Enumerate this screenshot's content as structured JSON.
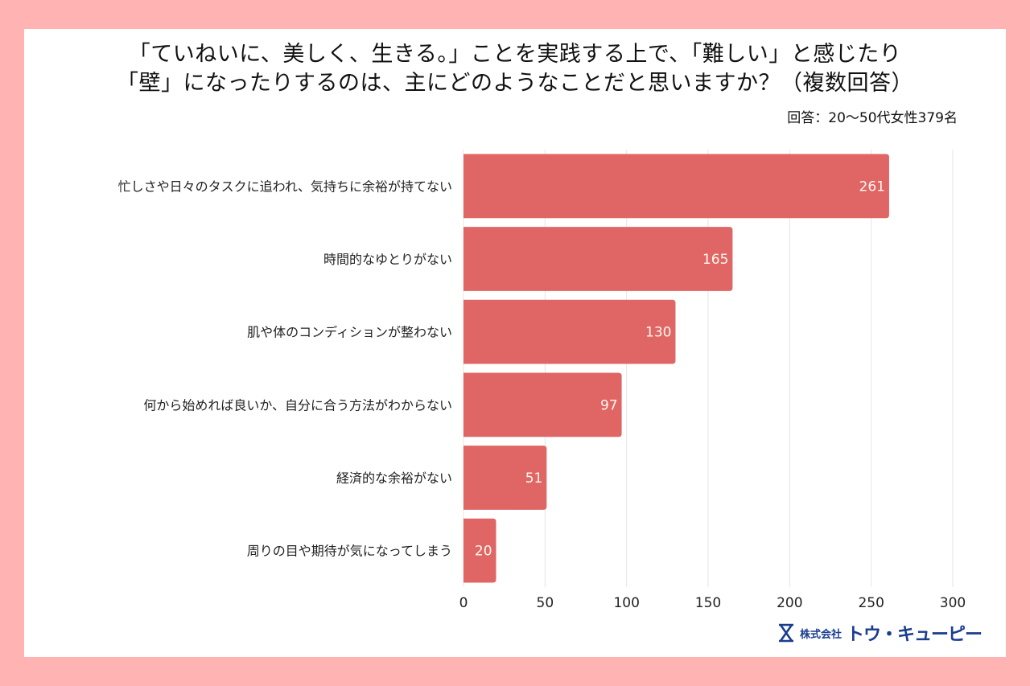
{
  "chart_data": {
    "type": "bar",
    "orientation": "horizontal",
    "title_lines": [
      "「ていねいに、美しく、生きる。」ことを実践する上で、「難しい」と感じたり",
      "「壁」になったりするのは、主にどのようなことだと思いますか？（複数回答）"
    ],
    "subtitle": "回答：20〜50代女性379名",
    "categories": [
      "忙しさや日々のタスクに追われ、気持ちに余裕が持てない",
      "時間的なゆとりがない",
      "肌や体のコンディションが整わない",
      "何から始めれば良いか、自分に合う方法がわからない",
      "経済的な余裕がない",
      "周りの目や期待が気になってしまう"
    ],
    "values": [
      261,
      165,
      130,
      97,
      51,
      20
    ],
    "value_labels": [
      "261",
      "165",
      "130",
      "97",
      "51",
      "20"
    ],
    "xlim": [
      0,
      300
    ],
    "xticks": [
      "0",
      "50",
      "100",
      "150",
      "200",
      "250",
      "300"
    ],
    "xlabel": "",
    "ylabel": "",
    "grid": true,
    "bar_color": "#e06666",
    "grid_color": "#e6e6e6"
  },
  "colors": {
    "background": "#ffb3b3",
    "card": "#ffffff",
    "logo": "#1a3d8f"
  },
  "footer": {
    "company_prefix": "株式会社",
    "company_name": "トウ・キューピー"
  }
}
